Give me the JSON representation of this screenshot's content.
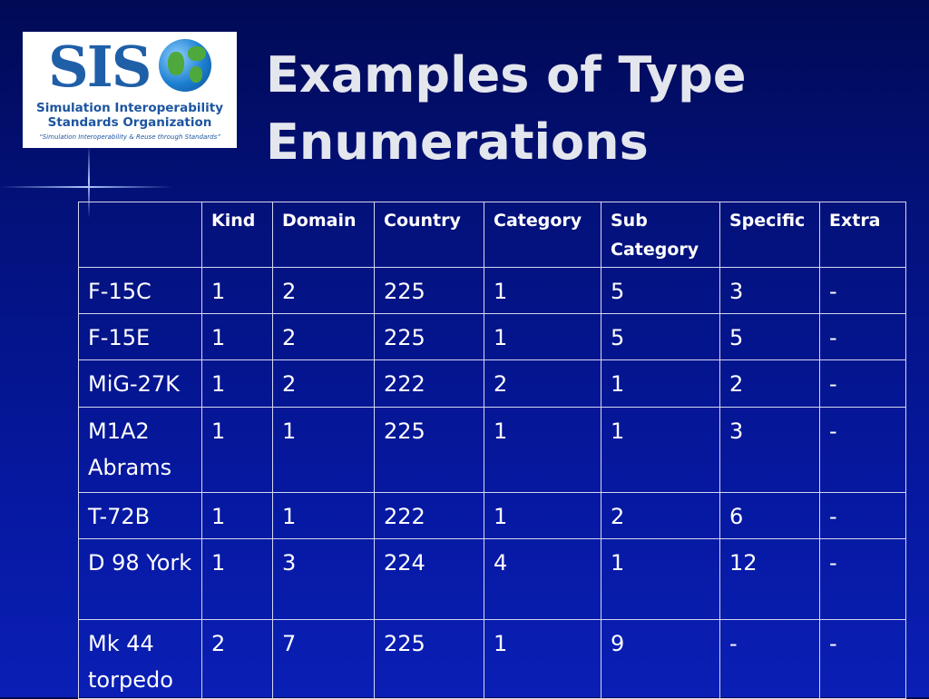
{
  "logo": {
    "letters": "SIS",
    "line1": "Simulation Interoperability",
    "line2": "Standards Organization",
    "tagline": "“Simulation Interoperability & Reuse through Standards”"
  },
  "title": "Examples of Type Enumerations",
  "table": {
    "header": [
      "Kind",
      "Domain",
      "Country",
      "Category",
      "Sub Category",
      "Specific",
      "Extra"
    ],
    "rows": [
      [
        "F-15C",
        1,
        2,
        225,
        1,
        5,
        3,
        "-"
      ],
      [
        "F-15E",
        1,
        2,
        225,
        1,
        5,
        5,
        "-"
      ],
      [
        "MiG-27K",
        1,
        2,
        222,
        2,
        1,
        2,
        "-"
      ],
      [
        "M1A2 Abrams",
        1,
        1,
        225,
        1,
        1,
        3,
        "-"
      ],
      [
        "T-72B",
        1,
        1,
        222,
        1,
        2,
        6,
        "-"
      ],
      [
        "D 98 York",
        1,
        3,
        224,
        4,
        1,
        12,
        "-"
      ],
      [
        "Mk 44 torpedo",
        2,
        7,
        225,
        1,
        9,
        "-",
        "-"
      ]
    ]
  }
}
